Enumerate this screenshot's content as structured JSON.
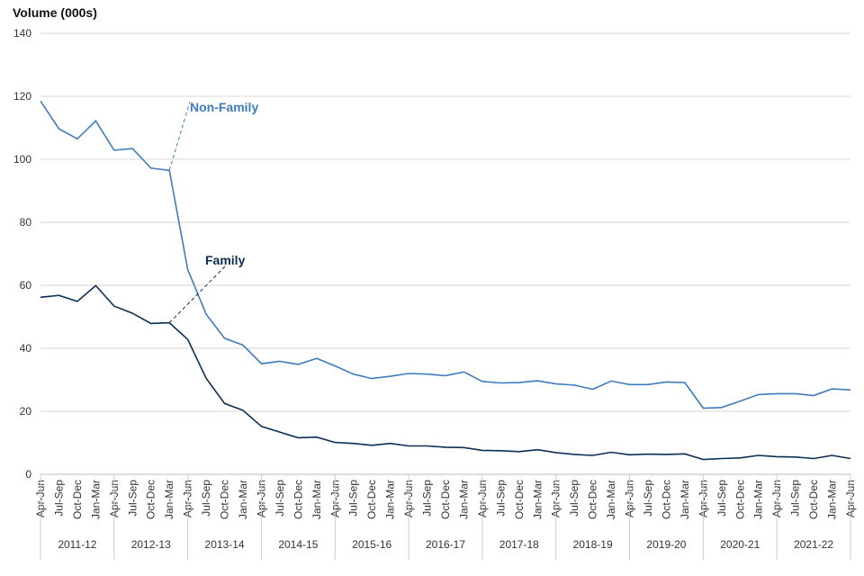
{
  "chart_data": {
    "type": "line",
    "ylabel": "Volume (000s)",
    "ylim": [
      0,
      140
    ],
    "yticks": [
      0,
      20,
      40,
      60,
      80,
      100,
      120,
      140
    ],
    "grid": true,
    "quarters": [
      "Apr-Jun",
      "Jul-Sep",
      "Oct-Dec",
      "Jan-Mar"
    ],
    "years": [
      "2011-12",
      "2012-13",
      "2013-14",
      "2014-15",
      "2015-16",
      "2016-17",
      "2017-18",
      "2018-19",
      "2019-20",
      "2020-21",
      "2021-22"
    ],
    "final_quarter": "Apr-Jun",
    "series": [
      {
        "name": "Non-Family",
        "color": "#3f7bbf",
        "values": [
          118.5,
          109.7,
          106.5,
          112.2,
          102.9,
          103.4,
          97.2,
          96.5,
          65,
          50.8,
          43.2,
          41,
          35.1,
          35.9,
          34.9,
          36.8,
          34.4,
          31.8,
          30.4,
          31.1,
          32,
          31.8,
          31.3,
          32.5,
          29.5,
          29,
          29.1,
          29.7,
          28.7,
          28.3,
          27,
          29.6,
          28.5,
          28.5,
          29.3,
          29.1,
          21,
          21.2,
          23.2,
          25.3,
          25.6,
          25.6,
          25,
          27.1,
          26.8
        ]
      },
      {
        "name": "Family",
        "color": "#0b2e55",
        "values": [
          56.2,
          56.8,
          54.9,
          59.9,
          53.4,
          51.1,
          47.9,
          48.1,
          42.8,
          30.5,
          22.5,
          20.3,
          15.2,
          13.4,
          11.6,
          11.8,
          10.1,
          9.8,
          9.2,
          9.8,
          9,
          9,
          8.6,
          8.5,
          7.6,
          7.5,
          7.2,
          7.8,
          6.9,
          6.3,
          6,
          7,
          6.2,
          6.4,
          6.3,
          6.5,
          4.7,
          5,
          5.2,
          6,
          5.6,
          5.5,
          5,
          6,
          5
        ]
      }
    ]
  }
}
